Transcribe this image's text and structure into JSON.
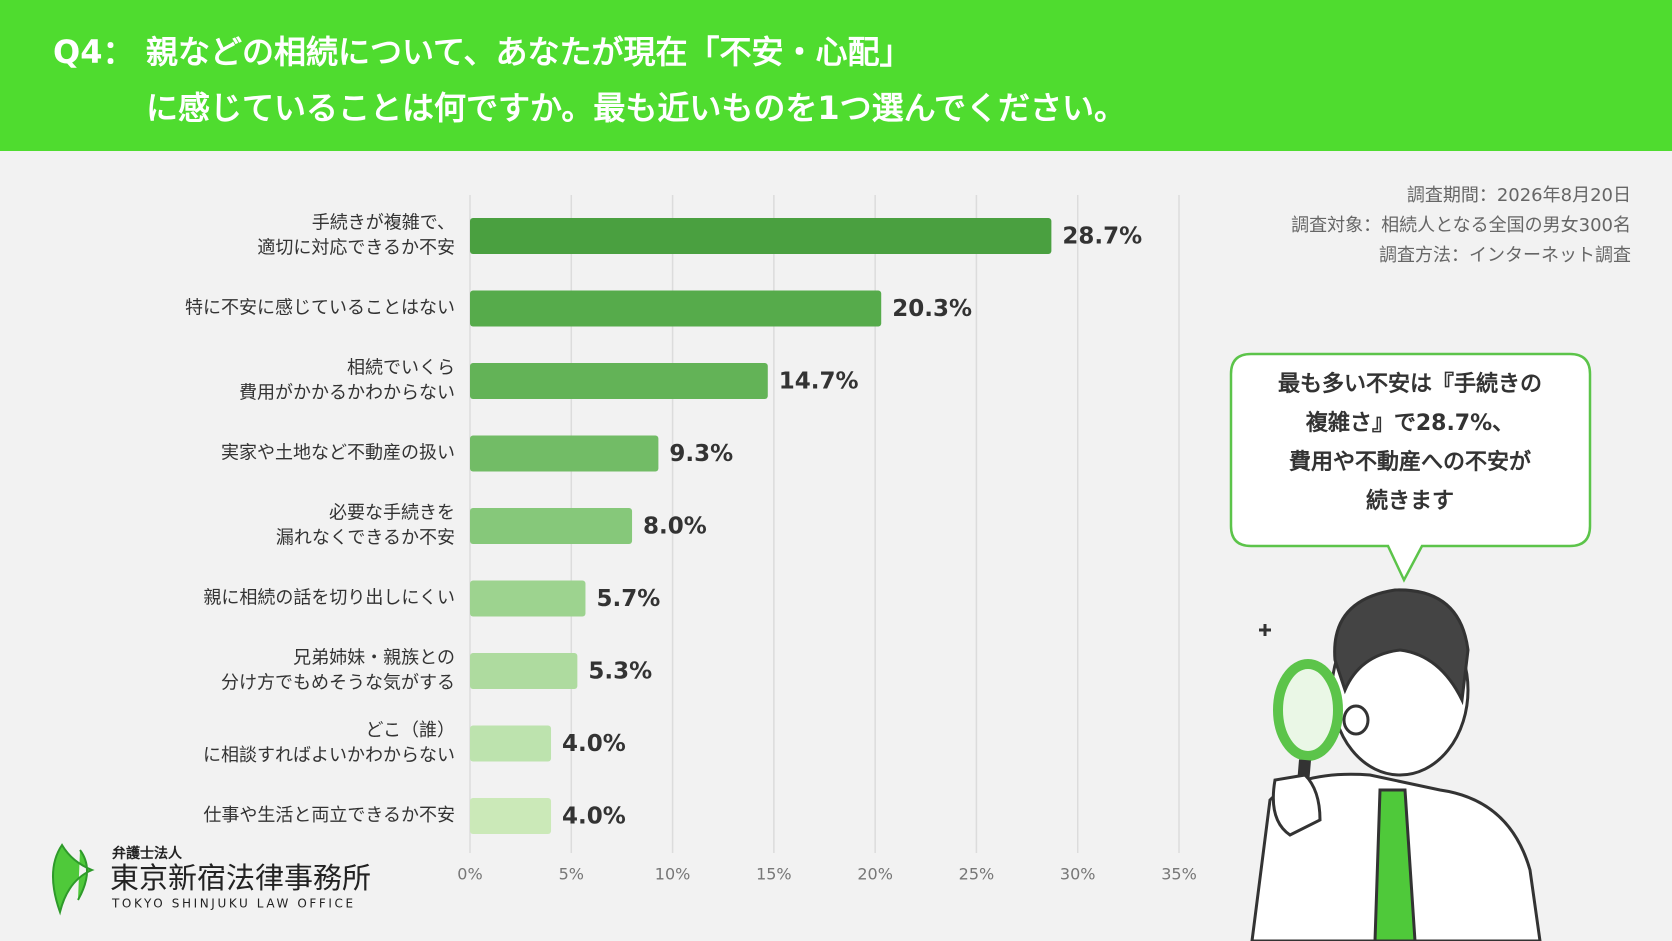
{
  "header": {
    "number": "Q4：",
    "lines": [
      "親などの相続について、あなたが現在「不安・心配」",
      "に感じていることは何ですか。最も近いものを1つ選んでください。"
    ]
  },
  "survey": [
    "調査期間：2026年8月20日",
    "調査対象：相続人となる全国の男女300名",
    "調査方法：インターネット調査"
  ],
  "bubble": [
    "最も多い不安は『手続きの",
    "複雑さ』で28.7%、",
    "費用や不動産への不安が",
    "続きます"
  ],
  "logo": {
    "small": "弁護士法人",
    "name": "東京新宿法律事務所",
    "english": "TOKYO SHINJUKU LAW OFFICE"
  },
  "chart_data": {
    "type": "barh",
    "categories": [
      [
        "手続きが複雑で、",
        "適切に対応できるか不安"
      ],
      [
        "特に不安に感じていることはない"
      ],
      [
        "相続でいくら",
        "費用がかかるかわからない"
      ],
      [
        "実家や土地など不動産の扱い"
      ],
      [
        "必要な手続きを",
        "漏れなくできるか不安"
      ],
      [
        "親に相続の話を切り出しにくい"
      ],
      [
        "兄弟姉妹・親族との",
        "分け方でもめそうな気がする"
      ],
      [
        "どこ（誰）",
        "に相談すればよいかわからない"
      ],
      [
        "仕事や生活と両立できるか不安"
      ]
    ],
    "values": [
      28.7,
      20.3,
      14.7,
      9.3,
      8.0,
      5.7,
      5.3,
      4.0,
      4.0
    ],
    "value_labels": [
      "28.7%",
      "20.3%",
      "14.7%",
      "9.3%",
      "8.0%",
      "5.7%",
      "5.3%",
      "4.0%",
      "4.0%"
    ],
    "colors": [
      "#4aa040",
      "#56ab4b",
      "#63b357",
      "#72bc66",
      "#86c87a",
      "#9dd38f",
      "#aedb9f",
      "#bde3ae",
      "#cbe9b8"
    ],
    "xlim": [
      0,
      35
    ],
    "xticks": [
      {
        "value": 0,
        "label": "0%"
      },
      {
        "value": 5,
        "label": "5%"
      },
      {
        "value": 10,
        "label": "10%"
      },
      {
        "value": 15,
        "label": "15%"
      },
      {
        "value": 20,
        "label": "20%"
      },
      {
        "value": 25,
        "label": "25%"
      },
      {
        "value": 30,
        "label": "30%"
      },
      {
        "value": 35,
        "label": "35%"
      }
    ],
    "grid": true
  }
}
